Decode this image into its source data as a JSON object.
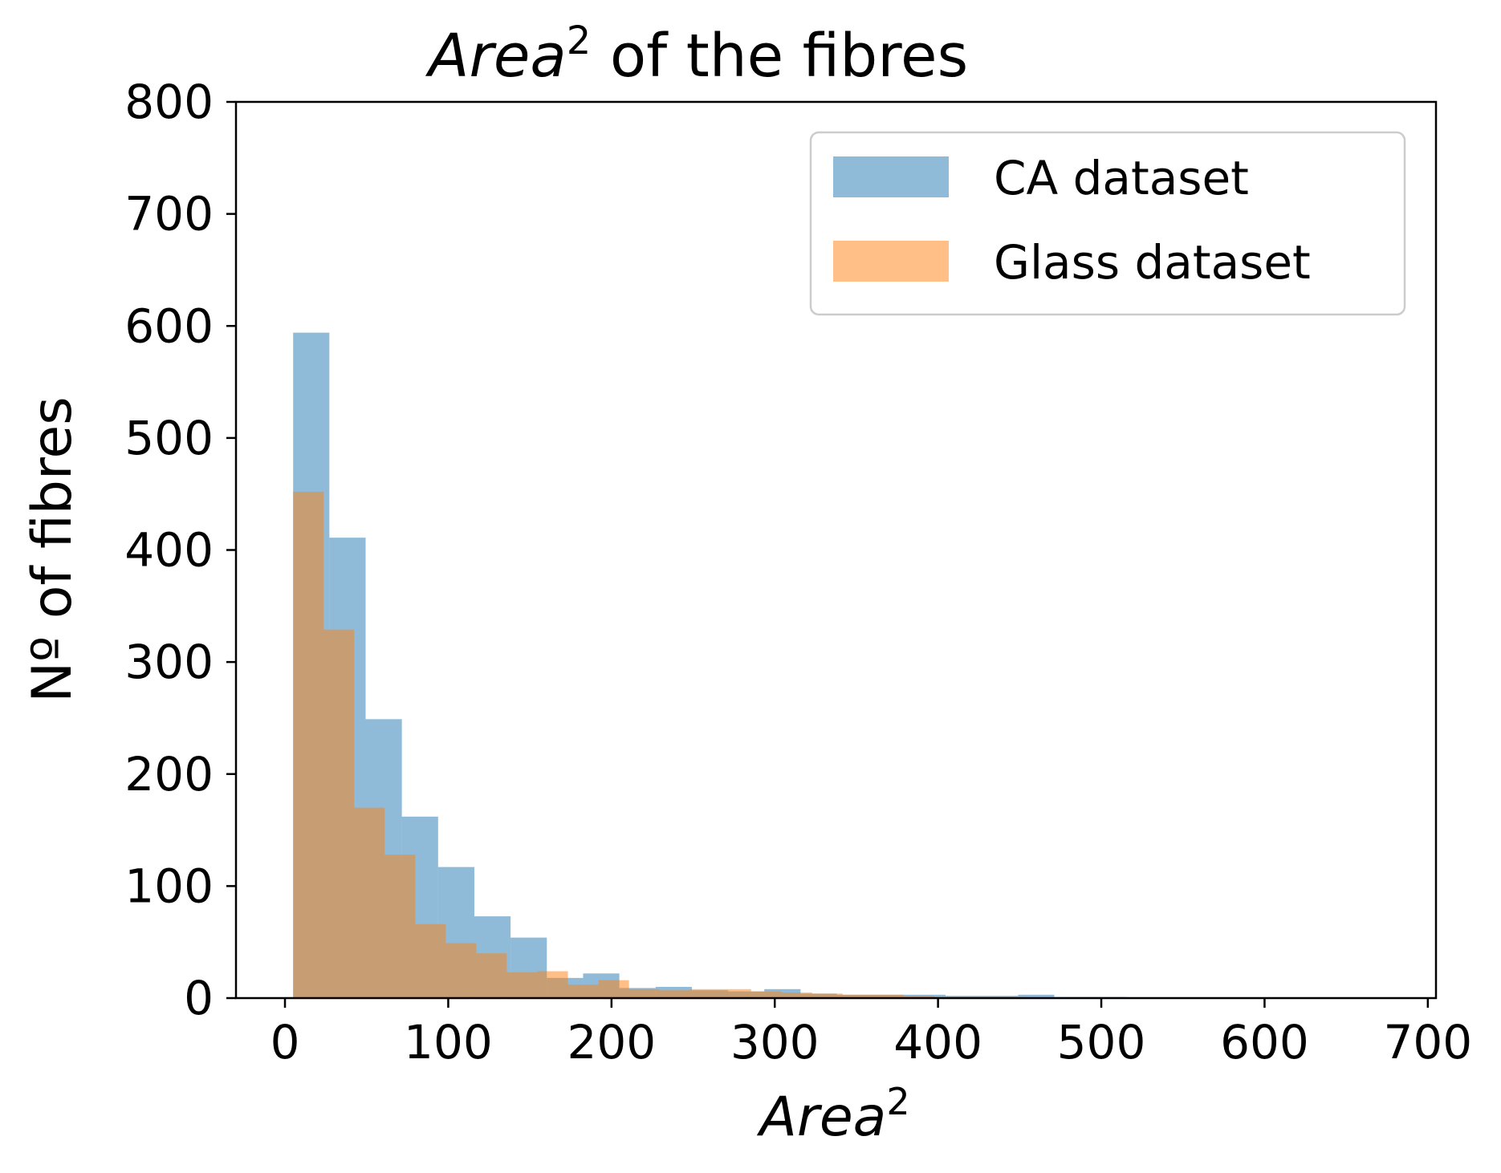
{
  "chart_data": {
    "type": "bar",
    "title_main": "Area",
    "title_sup": "2",
    "title_rest": " of the fibres",
    "xlabel_main": "Area",
    "xlabel_sup": "2",
    "ylabel": "Nº of fibres",
    "xlim": [
      -30,
      705
    ],
    "ylim": [
      0,
      800
    ],
    "xticks": [
      0,
      100,
      200,
      300,
      400,
      500,
      600,
      700
    ],
    "yticks": [
      0,
      100,
      200,
      300,
      400,
      500,
      600,
      700,
      800
    ],
    "xtick_labels": [
      "0",
      "100",
      "200",
      "300",
      "400",
      "500",
      "600",
      "700"
    ],
    "ytick_labels": [
      "0",
      "100",
      "200",
      "300",
      "400",
      "500",
      "600",
      "700",
      "800"
    ],
    "legend_position": "top-right",
    "grid": false,
    "series": [
      {
        "name": "CA dataset",
        "color": "#1f77b4",
        "opacity": 0.5,
        "bin_start": 5,
        "bin_width": 22.2,
        "values": [
          594,
          411,
          249,
          162,
          117,
          73,
          54,
          18,
          22,
          9,
          10,
          7,
          6,
          8,
          4,
          3,
          3,
          3,
          2,
          2,
          3,
          1,
          1,
          0,
          0,
          0,
          0,
          0,
          0,
          0
        ]
      },
      {
        "name": "Glass dataset",
        "color": "#ff7f0e",
        "opacity": 0.5,
        "bin_start": 5,
        "bin_width": 18.7,
        "values": [
          452,
          329,
          170,
          128,
          66,
          49,
          40,
          23,
          24,
          12,
          16,
          8,
          7,
          8,
          8,
          6,
          5,
          4,
          3,
          3,
          2,
          1,
          1,
          1,
          0
        ]
      }
    ]
  }
}
